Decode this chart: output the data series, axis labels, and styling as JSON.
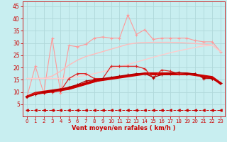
{
  "x": [
    0,
    1,
    2,
    3,
    4,
    5,
    6,
    7,
    8,
    9,
    10,
    11,
    12,
    13,
    14,
    15,
    16,
    17,
    18,
    19,
    20,
    21,
    22,
    23
  ],
  "background_color": "#c8eef0",
  "grid_color": "#b0d8da",
  "xlabel": "Vent moyen/en rafales ( km/h )",
  "xlabel_color": "#cc0000",
  "tick_color": "#cc0000",
  "ylim": [
    0,
    47
  ],
  "yticks": [
    5,
    10,
    15,
    20,
    25,
    30,
    35,
    40,
    45
  ],
  "series": [
    {
      "name": "light_pink_zigzag",
      "color": "#ff9999",
      "linewidth": 0.8,
      "marker": "+",
      "markersize": 3,
      "y": [
        8.0,
        20.5,
        9.5,
        32.0,
        9.5,
        29.0,
        28.5,
        29.5,
        32.0,
        32.5,
        32.0,
        32.0,
        41.5,
        33.5,
        35.5,
        31.5,
        32.0,
        32.0,
        32.0,
        32.0,
        31.0,
        30.5,
        30.5,
        26.5
      ]
    },
    {
      "name": "light_pink_smooth_upper",
      "color": "#ffbbbb",
      "linewidth": 1.0,
      "marker": null,
      "y": [
        15.5,
        15.5,
        15.6,
        16.5,
        18.5,
        21.0,
        23.0,
        24.5,
        25.5,
        26.5,
        27.5,
        28.5,
        29.5,
        30.0,
        30.2,
        30.3,
        30.3,
        30.3,
        30.2,
        30.0,
        29.8,
        29.5,
        29.2,
        26.5
      ]
    },
    {
      "name": "light_pink_smooth_lower",
      "color": "#ffcccc",
      "linewidth": 1.0,
      "marker": null,
      "y": [
        15.5,
        15.5,
        15.5,
        15.5,
        15.5,
        15.8,
        16.2,
        16.8,
        17.5,
        18.3,
        19.2,
        20.2,
        21.2,
        22.2,
        23.2,
        24.2,
        25.1,
        26.0,
        26.8,
        27.5,
        28.2,
        28.8,
        29.0,
        26.5
      ]
    },
    {
      "name": "dark_red_thick",
      "color": "#cc0000",
      "linewidth": 2.5,
      "marker": null,
      "y": [
        8.0,
        9.5,
        10.0,
        10.5,
        11.0,
        11.5,
        12.5,
        13.5,
        14.5,
        15.0,
        15.5,
        16.0,
        16.5,
        17.0,
        17.5,
        17.5,
        17.5,
        17.5,
        17.5,
        17.5,
        17.0,
        16.5,
        16.0,
        13.5
      ]
    },
    {
      "name": "dark_red_zigzag1",
      "color": "#dd2222",
      "linewidth": 0.9,
      "marker": "+",
      "markersize": 3,
      "y": [
        8.0,
        9.5,
        9.5,
        10.0,
        10.5,
        15.5,
        17.5,
        17.5,
        15.5,
        15.5,
        20.5,
        20.5,
        20.5,
        20.5,
        19.5,
        15.8,
        19.0,
        18.5,
        17.5,
        17.5,
        17.5,
        15.5,
        15.5,
        13.5
      ]
    },
    {
      "name": "dark_red_zigzag2",
      "color": "#aa0000",
      "linewidth": 0.9,
      "marker": "+",
      "markersize": 2.5,
      "y": [
        8.0,
        9.0,
        9.8,
        10.5,
        11.0,
        12.0,
        13.0,
        14.5,
        15.0,
        15.5,
        16.0,
        16.5,
        17.0,
        17.5,
        17.5,
        16.0,
        17.0,
        17.5,
        18.0,
        17.5,
        17.5,
        15.8,
        15.5,
        13.5
      ]
    },
    {
      "name": "dark_red_thin_smooth",
      "color": "#cc0000",
      "linewidth": 0.8,
      "marker": null,
      "y": [
        8.0,
        9.0,
        9.5,
        10.0,
        10.5,
        11.0,
        12.0,
        13.0,
        14.0,
        15.0,
        15.5,
        16.0,
        16.5,
        17.0,
        17.5,
        17.0,
        17.0,
        17.0,
        17.0,
        17.0,
        17.0,
        16.5,
        15.8,
        13.5
      ]
    },
    {
      "name": "bottom_arrow",
      "color": "#cc0000",
      "linewidth": 0.7,
      "marker": "<",
      "markersize": 2.5,
      "linestyle": "--",
      "y": [
        2.5,
        2.5,
        2.5,
        2.5,
        2.5,
        2.5,
        2.5,
        2.5,
        2.5,
        2.5,
        2.5,
        2.5,
        2.5,
        2.5,
        2.5,
        2.5,
        2.5,
        2.5,
        2.5,
        2.5,
        2.5,
        2.5,
        2.5,
        2.5
      ]
    }
  ]
}
